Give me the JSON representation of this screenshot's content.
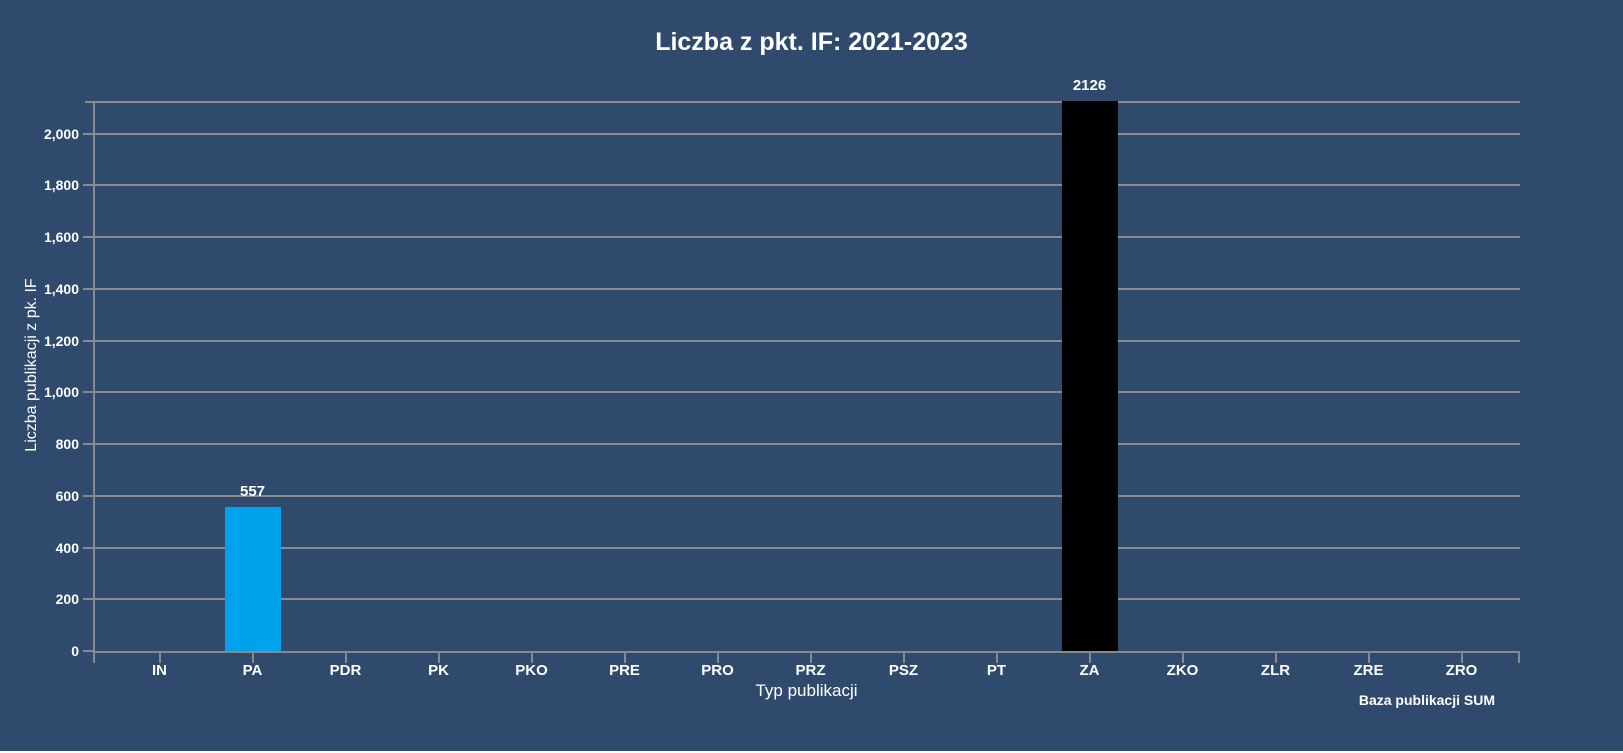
{
  "page": {
    "background_color": "#2F4A6D"
  },
  "chart": {
    "title": "Liczba z pkt. IF: 2021-2023",
    "x_axis_title": "Typ publikacji",
    "y_axis_title": "Liczba publikacji z pk. IF",
    "footer": "Baza publikacji SUM"
  },
  "chart_data": {
    "type": "bar",
    "title": "Liczba z pkt. IF: 2021-2023",
    "xlabel": "Typ publikacji",
    "ylabel": "Liczba publikacji z pk. IF",
    "categories": [
      "IN",
      "PA",
      "PDR",
      "PK",
      "PKO",
      "PRE",
      "PRO",
      "PRZ",
      "PSZ",
      "PT",
      "ZA",
      "ZKO",
      "ZLR",
      "ZRE",
      "ZRO"
    ],
    "values": [
      0,
      557,
      0,
      0,
      0,
      0,
      0,
      0,
      0,
      0,
      2126,
      0,
      0,
      0,
      0
    ],
    "data_labels": {
      "PA": "557",
      "ZA": "2126"
    },
    "bar_colors": {
      "PA": "#00A2EC",
      "ZA": "#000000"
    },
    "ylim": [
      0,
      2126
    ],
    "yticks": [
      {
        "value": 0,
        "label": "0"
      },
      {
        "value": 200,
        "label": "200"
      },
      {
        "value": 400,
        "label": "400"
      },
      {
        "value": 600,
        "label": "600"
      },
      {
        "value": 800,
        "label": "800"
      },
      {
        "value": 1000,
        "label": "1,000"
      },
      {
        "value": 1200,
        "label": "1,200"
      },
      {
        "value": 1400,
        "label": "1,400"
      },
      {
        "value": 1600,
        "label": "1,600"
      },
      {
        "value": 1800,
        "label": "1,800"
      },
      {
        "value": 2000,
        "label": "2,000"
      }
    ],
    "grid": true,
    "legend": false,
    "colors": {
      "background": "#2F4A6D",
      "grid": "#888a8d",
      "axis": "#888a8d",
      "text": "#FFFFFF"
    }
  }
}
